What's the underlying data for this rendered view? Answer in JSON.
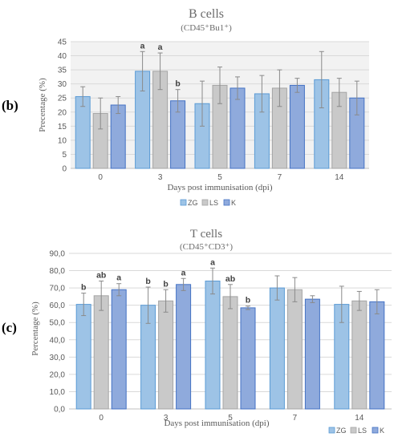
{
  "colors": {
    "ZG": "#9dc3e6",
    "LS": "#c9c9c9",
    "K": "#8faadc",
    "edgeZG": "#5b9bd5",
    "edgeLS": "#a5a5a5",
    "edgeK": "#4472c4",
    "grid": "#d9d9d9",
    "err": "#8a8a8a"
  },
  "chart_data": [
    {
      "type": "bar",
      "panel_label": "(b)",
      "title": "B cells",
      "subtitle": "(CD45⁺Bu1⁺)",
      "xlabel": "Days post immunisation (dpi)",
      "ylabel": "Precentage (%)",
      "categories": [
        "0",
        "3",
        "5",
        "7",
        "14"
      ],
      "ylim": [
        0,
        45
      ],
      "yticks": [
        "0",
        "5",
        "10",
        "15",
        "20",
        "25",
        "30",
        "35",
        "40",
        "45"
      ],
      "grid": true,
      "legend_position": "bottom",
      "series": [
        {
          "name": "ZG",
          "values": [
            25.5,
            34.5,
            23.0,
            26.5,
            31.5
          ],
          "errors": [
            3.5,
            7.0,
            8.0,
            6.5,
            10.0
          ],
          "labels": [
            "",
            "a",
            "",
            "",
            ""
          ]
        },
        {
          "name": "LS",
          "values": [
            19.5,
            34.5,
            29.5,
            28.5,
            27.0
          ],
          "errors": [
            5.5,
            6.5,
            6.5,
            6.5,
            5.0
          ],
          "labels": [
            "",
            "a",
            "",
            "",
            ""
          ]
        },
        {
          "name": "K",
          "values": [
            22.5,
            24.0,
            28.5,
            29.5,
            25.0
          ],
          "errors": [
            3.0,
            4.0,
            4.0,
            2.5,
            6.0
          ],
          "labels": [
            "",
            "b",
            "",
            "",
            ""
          ]
        }
      ]
    },
    {
      "type": "bar",
      "panel_label": "(c)",
      "title": "T cells",
      "subtitle": "(CD45⁺CD3⁺)",
      "xlabel": "Days post immunisation (dpi)",
      "ylabel": "Percentage (%)",
      "categories": [
        "0",
        "3",
        "5",
        "7",
        "14"
      ],
      "ylim": [
        0,
        90
      ],
      "yticks": [
        "0,0",
        "10,0",
        "20,0",
        "30,0",
        "40,0",
        "50,0",
        "60,0",
        "70,0",
        "80,0",
        "90,0"
      ],
      "grid": true,
      "legend_position": "bottom-right",
      "series": [
        {
          "name": "ZG",
          "values": [
            60.5,
            60.0,
            74.0,
            70.0,
            60.5
          ],
          "errors": [
            6.5,
            10.5,
            7.5,
            7.0,
            10.5
          ],
          "labels": [
            "b",
            "b",
            "a",
            "",
            ""
          ]
        },
        {
          "name": "LS",
          "values": [
            65.5,
            62.5,
            65.0,
            69.0,
            62.5
          ],
          "errors": [
            8.5,
            6.5,
            7.0,
            7.0,
            5.5
          ],
          "labels": [
            "ab",
            "b",
            "ab",
            "",
            ""
          ]
        },
        {
          "name": "K",
          "values": [
            69.0,
            72.0,
            58.5,
            63.5,
            62.0
          ],
          "errors": [
            3.5,
            3.5,
            1.0,
            2.0,
            7.0
          ],
          "labels": [
            "a",
            "a",
            "b",
            "",
            ""
          ]
        }
      ]
    }
  ]
}
